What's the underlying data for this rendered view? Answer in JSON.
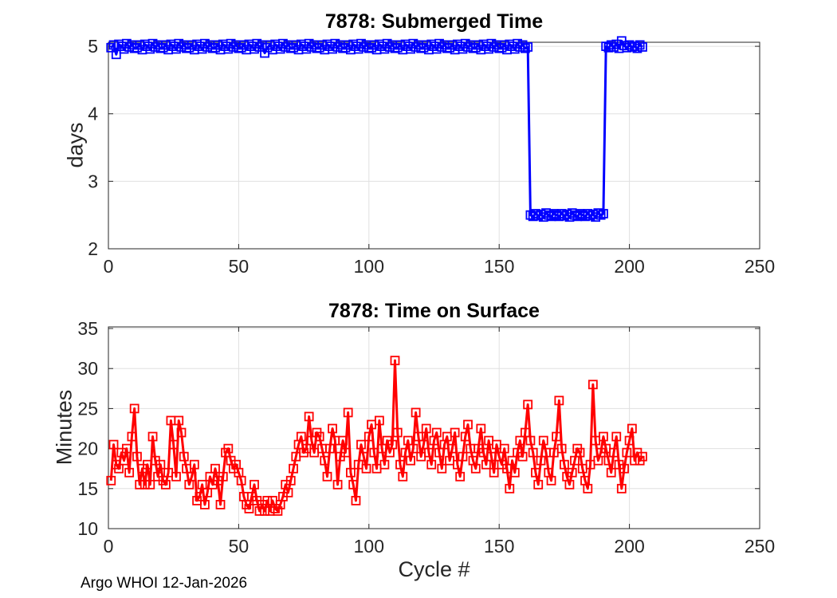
{
  "footer": {
    "text": "Argo WHOI 12-Jan-2026"
  },
  "colors": {
    "background": "#ffffff",
    "axis": "#262626",
    "grid": "#e0e0e0",
    "submerged_line": "#0000FF",
    "surface_line": "#FF0000",
    "title_text": "#000000",
    "tick_text": "#262626"
  },
  "chart_data": [
    {
      "type": "line",
      "title": "7878: Submerged Time",
      "xlabel": "",
      "ylabel": "days",
      "color": "#0000FF",
      "marker": "square",
      "grid": true,
      "legend": null,
      "xlim": [
        0,
        250
      ],
      "ylim": [
        2,
        5.06
      ],
      "xticks": [
        0,
        50,
        100,
        150,
        200,
        250
      ],
      "yticks": [
        2,
        3,
        4,
        5
      ],
      "x_start": 1,
      "x_step": 1,
      "values": [
        4.98,
        5.02,
        4.88,
        5.03,
        5.0,
        4.96,
        5.04,
        4.99,
        5.02,
        4.97,
        4.98,
        5.02,
        4.95,
        5.03,
        5.0,
        4.96,
        5.04,
        4.99,
        5.02,
        4.97,
        4.98,
        5.02,
        4.95,
        5.03,
        5.0,
        4.96,
        5.04,
        4.99,
        5.02,
        4.97,
        4.98,
        5.02,
        4.95,
        5.03,
        5.0,
        4.96,
        5.04,
        4.99,
        5.02,
        4.97,
        4.98,
        5.02,
        4.95,
        5.03,
        5.0,
        4.96,
        5.04,
        4.99,
        5.02,
        4.97,
        4.98,
        5.02,
        4.95,
        5.03,
        5.0,
        4.96,
        5.04,
        4.99,
        5.02,
        4.9,
        4.98,
        5.02,
        4.95,
        5.03,
        5.0,
        4.96,
        5.04,
        4.99,
        5.02,
        4.97,
        4.98,
        5.02,
        4.95,
        5.03,
        5.0,
        4.96,
        5.04,
        4.99,
        5.02,
        4.97,
        4.98,
        5.02,
        4.95,
        5.03,
        5.0,
        4.96,
        5.04,
        4.99,
        5.02,
        4.97,
        4.98,
        5.02,
        4.95,
        5.03,
        5.0,
        4.96,
        5.04,
        4.99,
        5.02,
        4.97,
        4.98,
        5.02,
        4.95,
        5.03,
        5.0,
        4.96,
        5.04,
        4.99,
        5.02,
        4.97,
        4.98,
        5.02,
        4.95,
        5.03,
        5.0,
        4.96,
        5.04,
        4.99,
        5.02,
        4.97,
        4.98,
        5.02,
        4.95,
        5.03,
        5.0,
        4.96,
        5.04,
        4.99,
        5.02,
        4.97,
        4.98,
        5.02,
        4.95,
        5.03,
        5.0,
        4.96,
        5.04,
        4.99,
        5.02,
        4.97,
        4.98,
        5.02,
        4.95,
        5.03,
        5.0,
        4.96,
        5.04,
        4.99,
        5.02,
        4.97,
        4.98,
        5.02,
        4.95,
        5.03,
        5.0,
        4.96,
        5.04,
        4.99,
        5.02,
        4.97,
        4.99,
        2.5,
        2.48,
        2.52,
        2.49,
        2.51,
        2.47,
        2.53,
        2.5,
        2.48,
        2.52,
        2.5,
        2.48,
        2.52,
        2.49,
        2.51,
        2.47,
        2.53,
        2.5,
        2.48,
        2.52,
        2.5,
        2.48,
        2.52,
        2.49,
        2.51,
        2.47,
        2.53,
        2.5,
        2.52,
        5.0,
        4.98,
        5.02,
        4.99,
        5.03,
        4.97,
        5.08,
        5.01,
        4.98,
        5.02,
        4.99,
        5.0,
        4.97,
        5.02,
        4.99
      ]
    },
    {
      "type": "line",
      "title": "7878: Time on Surface",
      "xlabel": "Cycle #",
      "ylabel": "Minutes",
      "color": "#FF0000",
      "marker": "square",
      "grid": true,
      "legend": null,
      "xlim": [
        0,
        250
      ],
      "ylim": [
        10,
        35.2
      ],
      "xticks": [
        0,
        50,
        100,
        150,
        200,
        250
      ],
      "yticks": [
        10,
        15,
        20,
        25,
        30,
        35
      ],
      "x_start": 1,
      "x_step": 1,
      "values": [
        16.0,
        20.5,
        18.0,
        17.5,
        19.5,
        18.5,
        20.0,
        17.0,
        21.5,
        25.0,
        19.0,
        15.5,
        17.5,
        15.5,
        18.0,
        15.5,
        21.5,
        18.5,
        16.5,
        18.0,
        16.0,
        15.5,
        17.0,
        23.5,
        20.5,
        16.5,
        23.5,
        22.0,
        19.0,
        17.5,
        15.5,
        16.5,
        18.0,
        13.5,
        14.0,
        15.5,
        13.0,
        14.5,
        16.5,
        15.5,
        17.5,
        16.0,
        13.0,
        16.5,
        19.5,
        20.0,
        18.5,
        17.5,
        18.0,
        17.0,
        16.0,
        14.0,
        13.0,
        12.5,
        14.0,
        15.5,
        13.5,
        12.2,
        13.0,
        12.2,
        13.5,
        12.2,
        13.5,
        12.5,
        12.2,
        13.0,
        14.0,
        15.5,
        14.5,
        16.0,
        17.5,
        19.0,
        20.5,
        21.5,
        19.5,
        20.0,
        24.0,
        21.0,
        19.5,
        22.0,
        21.5,
        20.0,
        18.5,
        16.5,
        20.0,
        22.5,
        21.0,
        15.5,
        19.0,
        21.0,
        19.5,
        24.5,
        17.0,
        15.5,
        13.5,
        18.0,
        20.5,
        19.0,
        17.5,
        21.5,
        23.0,
        19.5,
        17.5,
        23.5,
        20.0,
        18.0,
        21.0,
        19.5,
        20.5,
        31.0,
        22.0,
        18.0,
        16.5,
        19.5,
        21.0,
        18.5,
        20.0,
        24.5,
        21.5,
        19.0,
        20.5,
        22.5,
        19.5,
        18.0,
        21.0,
        22.0,
        19.5,
        17.5,
        20.5,
        21.5,
        18.5,
        20.0,
        22.0,
        18.0,
        16.5,
        19.0,
        21.5,
        23.0,
        20.0,
        18.5,
        17.5,
        20.0,
        22.5,
        19.5,
        18.0,
        21.0,
        19.0,
        17.0,
        20.5,
        19.0,
        18.0,
        20.0,
        17.5,
        15.0,
        18.5,
        17.0,
        19.5,
        21.0,
        19.0,
        22.0,
        25.5,
        21.0,
        19.5,
        17.0,
        15.5,
        18.5,
        21.0,
        19.5,
        17.0,
        16.0,
        19.5,
        21.5,
        26.0,
        20.0,
        18.0,
        16.5,
        15.5,
        17.0,
        18.5,
        20.0,
        19.5,
        17.5,
        16.0,
        15.0,
        18.0,
        28.0,
        21.0,
        18.5,
        19.5,
        21.5,
        20.0,
        18.5,
        17.0,
        19.5,
        21.5,
        18.0,
        15.0,
        17.5,
        19.5,
        21.0,
        22.5,
        18.5,
        19.5,
        18.5,
        19.0
      ]
    }
  ]
}
